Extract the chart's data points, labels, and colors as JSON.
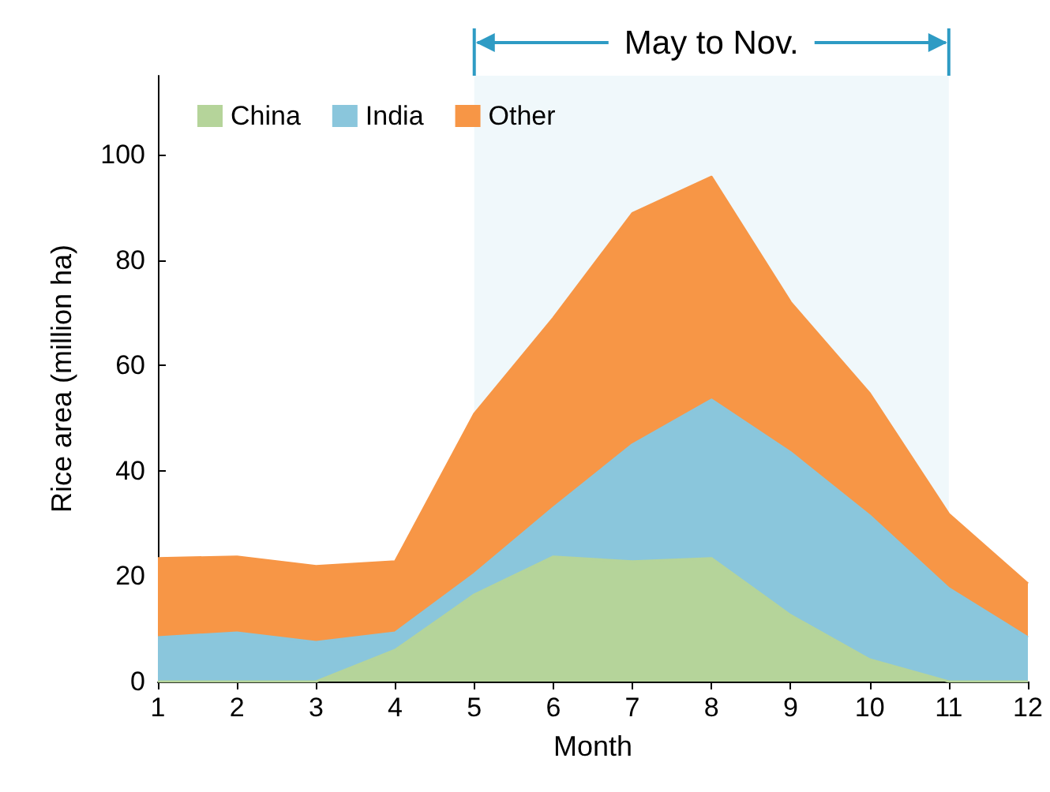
{
  "chart_data": {
    "type": "area",
    "stacked": true,
    "xlabel": "Month",
    "ylabel": "Rice area (million ha)",
    "x": [
      1,
      2,
      3,
      4,
      5,
      6,
      7,
      8,
      9,
      10,
      11,
      12
    ],
    "xlim": [
      1,
      12
    ],
    "xticks": [
      1,
      2,
      3,
      4,
      5,
      6,
      7,
      8,
      9,
      10,
      11,
      12
    ],
    "ylim": [
      0,
      115
    ],
    "yticks": [
      0,
      20,
      40,
      60,
      80,
      100
    ],
    "series": [
      {
        "name": "China",
        "color": "#b5d49a",
        "values": [
          0,
          0,
          0,
          6,
          16.5,
          23.7,
          22.8,
          23.4,
          12.6,
          4.2,
          0,
          0
        ]
      },
      {
        "name": "India",
        "color": "#8ac6dc",
        "values": [
          8.4,
          9.3,
          7.5,
          3.3,
          3.9,
          9.3,
          22.2,
          30.1,
          30.9,
          27.3,
          17.7,
          8.4
        ]
      },
      {
        "name": "Other",
        "color": "#f79646",
        "values": [
          15,
          14.4,
          14.4,
          13.5,
          30.4,
          36,
          43.9,
          42.3,
          28.5,
          23.2,
          14.1,
          10.2
        ]
      }
    ],
    "bands": [
      {
        "axis": "x",
        "from": 5,
        "to": 11,
        "label": "May to Nov.",
        "color": "#daeef5"
      }
    ],
    "legend": "top left",
    "grid": false,
    "marker": "none"
  }
}
